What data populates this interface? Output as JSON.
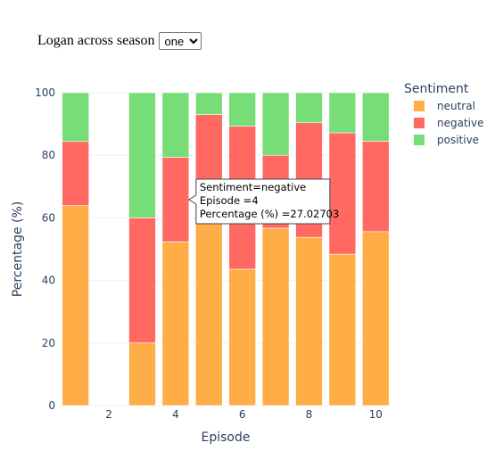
{
  "controls": {
    "dropdown_label": "Logan across season",
    "season_selected": "one",
    "season_options": [
      "one"
    ]
  },
  "chart_data": {
    "type": "bar",
    "stacked": true,
    "xlabel": "Episode",
    "ylabel": "Percentage (%)",
    "ylim": [
      0,
      100
    ],
    "yticks": [
      0,
      20,
      40,
      60,
      80,
      100
    ],
    "xticks": [
      2,
      4,
      6,
      8,
      10
    ],
    "xlim": [
      0.5,
      10.5
    ],
    "grid": true,
    "legend": {
      "title": "Sentiment",
      "placement": "top-right",
      "entries": [
        "neutral",
        "negative",
        "positive"
      ]
    },
    "x": [
      1,
      2,
      3,
      4,
      5,
      6,
      7,
      8,
      9,
      10
    ],
    "series": [
      {
        "name": "neutral",
        "color": "#FFAE47",
        "values": [
          63.9,
          0,
          20.0,
          52.3,
          70.8,
          43.6,
          56.7,
          53.8,
          48.4,
          55.6
        ]
      },
      {
        "name": "negative",
        "color": "#FF6962",
        "values": [
          20.5,
          0,
          40.0,
          27.02703,
          22.2,
          45.7,
          23.3,
          36.6,
          38.8,
          28.9
        ]
      },
      {
        "name": "positive",
        "color": "#77DD77",
        "values": [
          15.6,
          0,
          40.0,
          20.7,
          7.0,
          10.7,
          20.0,
          9.6,
          12.8,
          15.5
        ]
      }
    ],
    "tooltip": {
      "lines": [
        "Sentiment=negative",
        "Episode =4",
        "Percentage (%) =27.02703"
      ]
    }
  }
}
